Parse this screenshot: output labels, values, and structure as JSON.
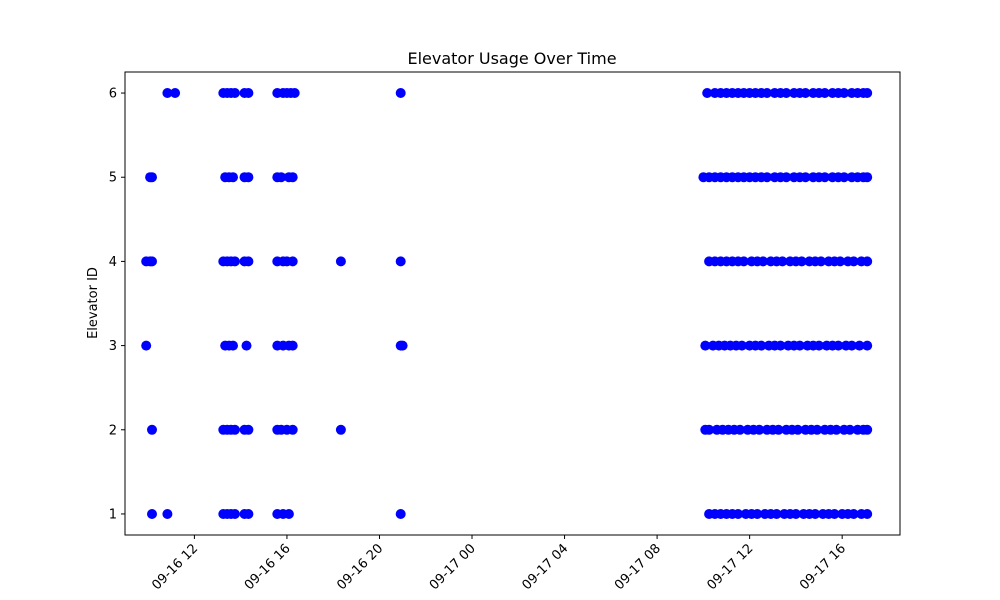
{
  "chart_data": {
    "type": "scatter",
    "title": "Elevator Usage Over Time",
    "xlabel": "",
    "ylabel": "Elevator ID",
    "xlim": [
      "2016-09-16T09:00",
      "2016-09-17T18:30"
    ],
    "ylim": [
      0.75,
      6.25
    ],
    "y_ticks": [
      1,
      2,
      3,
      4,
      5,
      6
    ],
    "x_ticks": [
      {
        "t": "2016-09-16T12:00",
        "label": "09-16 12"
      },
      {
        "t": "2016-09-16T16:00",
        "label": "09-16 16"
      },
      {
        "t": "2016-09-16T20:00",
        "label": "09-16 20"
      },
      {
        "t": "2016-09-17T00:00",
        "label": "09-17 00"
      },
      {
        "t": "2016-09-17T04:00",
        "label": "09-17 04"
      },
      {
        "t": "2016-09-17T08:00",
        "label": "09-17 08"
      },
      {
        "t": "2016-09-17T12:00",
        "label": "09-17 12"
      },
      {
        "t": "2016-09-17T16:00",
        "label": "09-17 16"
      }
    ],
    "grid": false,
    "marker_color": "#0000ff",
    "series": [
      {
        "points": [
          [
            "2016-09-16T10:50",
            6
          ],
          [
            "2016-09-16T11:10",
            6
          ],
          [
            "2016-09-16T13:15",
            6
          ],
          [
            "2016-09-16T13:25",
            6
          ],
          [
            "2016-09-16T13:35",
            6
          ],
          [
            "2016-09-16T13:45",
            6
          ],
          [
            "2016-09-16T14:10",
            6
          ],
          [
            "2016-09-16T14:20",
            6
          ],
          [
            "2016-09-16T15:35",
            6
          ],
          [
            "2016-09-16T15:50",
            6
          ],
          [
            "2016-09-16T16:00",
            6
          ],
          [
            "2016-09-16T16:10",
            6
          ],
          [
            "2016-09-16T16:20",
            6
          ],
          [
            "2016-09-16T20:55",
            6
          ],
          [
            "2016-09-17T10:10",
            6
          ],
          [
            "2016-09-17T10:30",
            6
          ],
          [
            "2016-09-17T10:45",
            6
          ],
          [
            "2016-09-17T11:00",
            6
          ],
          [
            "2016-09-17T11:15",
            6
          ],
          [
            "2016-09-17T11:30",
            6
          ],
          [
            "2016-09-17T11:45",
            6
          ],
          [
            "2016-09-17T12:00",
            6
          ],
          [
            "2016-09-17T12:15",
            6
          ],
          [
            "2016-09-17T12:30",
            6
          ],
          [
            "2016-09-17T12:45",
            6
          ],
          [
            "2016-09-17T13:05",
            6
          ],
          [
            "2016-09-17T13:20",
            6
          ],
          [
            "2016-09-17T13:35",
            6
          ],
          [
            "2016-09-17T13:55",
            6
          ],
          [
            "2016-09-17T14:10",
            6
          ],
          [
            "2016-09-17T14:25",
            6
          ],
          [
            "2016-09-17T14:45",
            6
          ],
          [
            "2016-09-17T15:00",
            6
          ],
          [
            "2016-09-17T15:15",
            6
          ],
          [
            "2016-09-17T15:35",
            6
          ],
          [
            "2016-09-17T15:50",
            6
          ],
          [
            "2016-09-17T16:05",
            6
          ],
          [
            "2016-09-17T16:25",
            6
          ],
          [
            "2016-09-17T16:40",
            6
          ],
          [
            "2016-09-17T16:55",
            6
          ],
          [
            "2016-09-17T17:05",
            6
          ],
          [
            "2016-09-16T10:05",
            5
          ],
          [
            "2016-09-16T10:10",
            5
          ],
          [
            "2016-09-16T13:20",
            5
          ],
          [
            "2016-09-16T13:30",
            5
          ],
          [
            "2016-09-16T13:40",
            5
          ],
          [
            "2016-09-16T14:10",
            5
          ],
          [
            "2016-09-16T14:20",
            5
          ],
          [
            "2016-09-16T15:35",
            5
          ],
          [
            "2016-09-16T15:45",
            5
          ],
          [
            "2016-09-16T16:05",
            5
          ],
          [
            "2016-09-16T16:15",
            5
          ],
          [
            "2016-09-17T10:00",
            5
          ],
          [
            "2016-09-17T10:15",
            5
          ],
          [
            "2016-09-17T10:30",
            5
          ],
          [
            "2016-09-17T10:45",
            5
          ],
          [
            "2016-09-17T11:00",
            5
          ],
          [
            "2016-09-17T11:15",
            5
          ],
          [
            "2016-09-17T11:30",
            5
          ],
          [
            "2016-09-17T11:45",
            5
          ],
          [
            "2016-09-17T12:00",
            5
          ],
          [
            "2016-09-17T12:15",
            5
          ],
          [
            "2016-09-17T12:30",
            5
          ],
          [
            "2016-09-17T12:45",
            5
          ],
          [
            "2016-09-17T13:05",
            5
          ],
          [
            "2016-09-17T13:20",
            5
          ],
          [
            "2016-09-17T13:35",
            5
          ],
          [
            "2016-09-17T13:55",
            5
          ],
          [
            "2016-09-17T14:10",
            5
          ],
          [
            "2016-09-17T14:25",
            5
          ],
          [
            "2016-09-17T14:45",
            5
          ],
          [
            "2016-09-17T15:00",
            5
          ],
          [
            "2016-09-17T15:15",
            5
          ],
          [
            "2016-09-17T15:35",
            5
          ],
          [
            "2016-09-17T15:50",
            5
          ],
          [
            "2016-09-17T16:05",
            5
          ],
          [
            "2016-09-17T16:25",
            5
          ],
          [
            "2016-09-17T16:40",
            5
          ],
          [
            "2016-09-17T16:55",
            5
          ],
          [
            "2016-09-17T17:05",
            5
          ],
          [
            "2016-09-16T09:55",
            4
          ],
          [
            "2016-09-16T10:05",
            4
          ],
          [
            "2016-09-16T10:10",
            4
          ],
          [
            "2016-09-16T13:15",
            4
          ],
          [
            "2016-09-16T13:25",
            4
          ],
          [
            "2016-09-16T13:35",
            4
          ],
          [
            "2016-09-16T13:45",
            4
          ],
          [
            "2016-09-16T14:10",
            4
          ],
          [
            "2016-09-16T14:20",
            4
          ],
          [
            "2016-09-16T15:35",
            4
          ],
          [
            "2016-09-16T15:50",
            4
          ],
          [
            "2016-09-16T16:00",
            4
          ],
          [
            "2016-09-16T16:15",
            4
          ],
          [
            "2016-09-16T18:20",
            4
          ],
          [
            "2016-09-16T20:55",
            4
          ],
          [
            "2016-09-17T10:15",
            4
          ],
          [
            "2016-09-17T10:30",
            4
          ],
          [
            "2016-09-17T10:45",
            4
          ],
          [
            "2016-09-17T11:00",
            4
          ],
          [
            "2016-09-17T11:15",
            4
          ],
          [
            "2016-09-17T11:30",
            4
          ],
          [
            "2016-09-17T11:45",
            4
          ],
          [
            "2016-09-17T12:05",
            4
          ],
          [
            "2016-09-17T12:20",
            4
          ],
          [
            "2016-09-17T12:35",
            4
          ],
          [
            "2016-09-17T12:55",
            4
          ],
          [
            "2016-09-17T13:10",
            4
          ],
          [
            "2016-09-17T13:25",
            4
          ],
          [
            "2016-09-17T13:45",
            4
          ],
          [
            "2016-09-17T14:00",
            4
          ],
          [
            "2016-09-17T14:15",
            4
          ],
          [
            "2016-09-17T14:35",
            4
          ],
          [
            "2016-09-17T14:50",
            4
          ],
          [
            "2016-09-17T15:05",
            4
          ],
          [
            "2016-09-17T15:25",
            4
          ],
          [
            "2016-09-17T15:40",
            4
          ],
          [
            "2016-09-17T15:55",
            4
          ],
          [
            "2016-09-17T16:15",
            4
          ],
          [
            "2016-09-17T16:30",
            4
          ],
          [
            "2016-09-17T16:50",
            4
          ],
          [
            "2016-09-17T17:05",
            4
          ],
          [
            "2016-09-16T09:55",
            3
          ],
          [
            "2016-09-16T13:20",
            3
          ],
          [
            "2016-09-16T13:30",
            3
          ],
          [
            "2016-09-16T13:40",
            3
          ],
          [
            "2016-09-16T14:15",
            3
          ],
          [
            "2016-09-16T15:35",
            3
          ],
          [
            "2016-09-16T15:50",
            3
          ],
          [
            "2016-09-16T16:05",
            3
          ],
          [
            "2016-09-16T16:15",
            3
          ],
          [
            "2016-09-16T20:55",
            3
          ],
          [
            "2016-09-16T21:00",
            3
          ],
          [
            "2016-09-17T10:05",
            3
          ],
          [
            "2016-09-17T10:25",
            3
          ],
          [
            "2016-09-17T10:40",
            3
          ],
          [
            "2016-09-17T10:55",
            3
          ],
          [
            "2016-09-17T11:10",
            3
          ],
          [
            "2016-09-17T11:25",
            3
          ],
          [
            "2016-09-17T11:40",
            3
          ],
          [
            "2016-09-17T12:00",
            3
          ],
          [
            "2016-09-17T12:15",
            3
          ],
          [
            "2016-09-17T12:30",
            3
          ],
          [
            "2016-09-17T12:50",
            3
          ],
          [
            "2016-09-17T13:05",
            3
          ],
          [
            "2016-09-17T13:20",
            3
          ],
          [
            "2016-09-17T13:40",
            3
          ],
          [
            "2016-09-17T13:55",
            3
          ],
          [
            "2016-09-17T14:10",
            3
          ],
          [
            "2016-09-17T14:30",
            3
          ],
          [
            "2016-09-17T14:45",
            3
          ],
          [
            "2016-09-17T15:00",
            3
          ],
          [
            "2016-09-17T15:20",
            3
          ],
          [
            "2016-09-17T15:35",
            3
          ],
          [
            "2016-09-17T15:50",
            3
          ],
          [
            "2016-09-17T16:10",
            3
          ],
          [
            "2016-09-17T16:25",
            3
          ],
          [
            "2016-09-17T16:45",
            3
          ],
          [
            "2016-09-17T17:05",
            3
          ],
          [
            "2016-09-16T10:10",
            2
          ],
          [
            "2016-09-16T13:15",
            2
          ],
          [
            "2016-09-16T13:25",
            2
          ],
          [
            "2016-09-16T13:35",
            2
          ],
          [
            "2016-09-16T13:45",
            2
          ],
          [
            "2016-09-16T14:10",
            2
          ],
          [
            "2016-09-16T14:20",
            2
          ],
          [
            "2016-09-16T15:35",
            2
          ],
          [
            "2016-09-16T15:45",
            2
          ],
          [
            "2016-09-16T16:00",
            2
          ],
          [
            "2016-09-16T16:15",
            2
          ],
          [
            "2016-09-16T18:20",
            2
          ],
          [
            "2016-09-17T10:05",
            2
          ],
          [
            "2016-09-17T10:15",
            2
          ],
          [
            "2016-09-17T10:35",
            2
          ],
          [
            "2016-09-17T10:50",
            2
          ],
          [
            "2016-09-17T11:05",
            2
          ],
          [
            "2016-09-17T11:20",
            2
          ],
          [
            "2016-09-17T11:35",
            2
          ],
          [
            "2016-09-17T11:55",
            2
          ],
          [
            "2016-09-17T12:10",
            2
          ],
          [
            "2016-09-17T12:25",
            2
          ],
          [
            "2016-09-17T12:45",
            2
          ],
          [
            "2016-09-17T13:00",
            2
          ],
          [
            "2016-09-17T13:15",
            2
          ],
          [
            "2016-09-17T13:35",
            2
          ],
          [
            "2016-09-17T13:50",
            2
          ],
          [
            "2016-09-17T14:05",
            2
          ],
          [
            "2016-09-17T14:25",
            2
          ],
          [
            "2016-09-17T14:40",
            2
          ],
          [
            "2016-09-17T14:55",
            2
          ],
          [
            "2016-09-17T15:15",
            2
          ],
          [
            "2016-09-17T15:30",
            2
          ],
          [
            "2016-09-17T15:45",
            2
          ],
          [
            "2016-09-17T16:05",
            2
          ],
          [
            "2016-09-17T16:20",
            2
          ],
          [
            "2016-09-17T16:40",
            2
          ],
          [
            "2016-09-17T16:55",
            2
          ],
          [
            "2016-09-17T17:05",
            2
          ],
          [
            "2016-09-16T10:10",
            1
          ],
          [
            "2016-09-16T10:50",
            1
          ],
          [
            "2016-09-16T13:15",
            1
          ],
          [
            "2016-09-16T13:25",
            1
          ],
          [
            "2016-09-16T13:35",
            1
          ],
          [
            "2016-09-16T13:45",
            1
          ],
          [
            "2016-09-16T14:10",
            1
          ],
          [
            "2016-09-16T14:20",
            1
          ],
          [
            "2016-09-16T15:35",
            1
          ],
          [
            "2016-09-16T15:50",
            1
          ],
          [
            "2016-09-16T16:05",
            1
          ],
          [
            "2016-09-16T20:55",
            1
          ],
          [
            "2016-09-17T10:15",
            1
          ],
          [
            "2016-09-17T10:30",
            1
          ],
          [
            "2016-09-17T10:45",
            1
          ],
          [
            "2016-09-17T11:00",
            1
          ],
          [
            "2016-09-17T11:15",
            1
          ],
          [
            "2016-09-17T11:30",
            1
          ],
          [
            "2016-09-17T11:50",
            1
          ],
          [
            "2016-09-17T12:05",
            1
          ],
          [
            "2016-09-17T12:20",
            1
          ],
          [
            "2016-09-17T12:40",
            1
          ],
          [
            "2016-09-17T12:55",
            1
          ],
          [
            "2016-09-17T13:10",
            1
          ],
          [
            "2016-09-17T13:30",
            1
          ],
          [
            "2016-09-17T13:45",
            1
          ],
          [
            "2016-09-17T14:00",
            1
          ],
          [
            "2016-09-17T14:20",
            1
          ],
          [
            "2016-09-17T14:35",
            1
          ],
          [
            "2016-09-17T14:50",
            1
          ],
          [
            "2016-09-17T15:10",
            1
          ],
          [
            "2016-09-17T15:25",
            1
          ],
          [
            "2016-09-17T15:40",
            1
          ],
          [
            "2016-09-17T16:00",
            1
          ],
          [
            "2016-09-17T16:15",
            1
          ],
          [
            "2016-09-17T16:30",
            1
          ],
          [
            "2016-09-17T16:50",
            1
          ],
          [
            "2016-09-17T17:05",
            1
          ]
        ]
      }
    ]
  }
}
